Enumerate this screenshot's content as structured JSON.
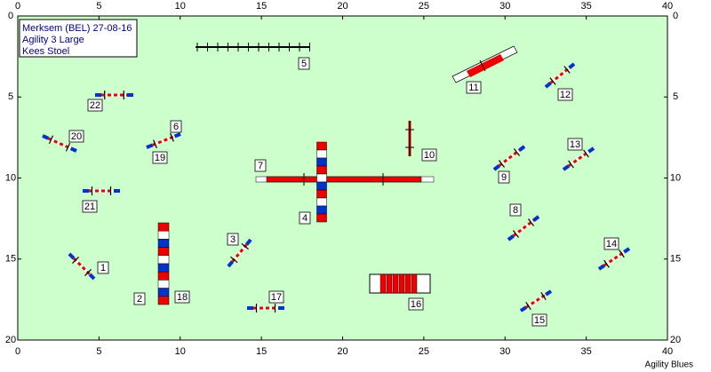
{
  "info": {
    "lines": [
      "Merksem (BEL) 27-08-16",
      "Agility 3 Large",
      "Kees Stoel"
    ]
  },
  "axes": {
    "xlim": [
      0,
      40
    ],
    "ylim": [
      0,
      20
    ],
    "xticks": [
      0,
      5,
      10,
      15,
      20,
      25,
      30,
      35,
      40
    ],
    "yticks": [
      0,
      5,
      10,
      15,
      20
    ]
  },
  "obstacles": [
    {
      "label": "1"
    },
    {
      "label": "2"
    },
    {
      "label": "3"
    },
    {
      "label": "4"
    },
    {
      "label": "5"
    },
    {
      "label": "6"
    },
    {
      "label": "7"
    },
    {
      "label": "8"
    },
    {
      "label": "9"
    },
    {
      "label": "10"
    },
    {
      "label": "11"
    },
    {
      "label": "12"
    },
    {
      "label": "13"
    },
    {
      "label": "14"
    },
    {
      "label": "15"
    },
    {
      "label": "16"
    },
    {
      "label": "17"
    },
    {
      "label": "18"
    },
    {
      "label": "19"
    },
    {
      "label": "20"
    },
    {
      "label": "21"
    },
    {
      "label": "22"
    }
  ],
  "footer": "Agility Blues"
}
